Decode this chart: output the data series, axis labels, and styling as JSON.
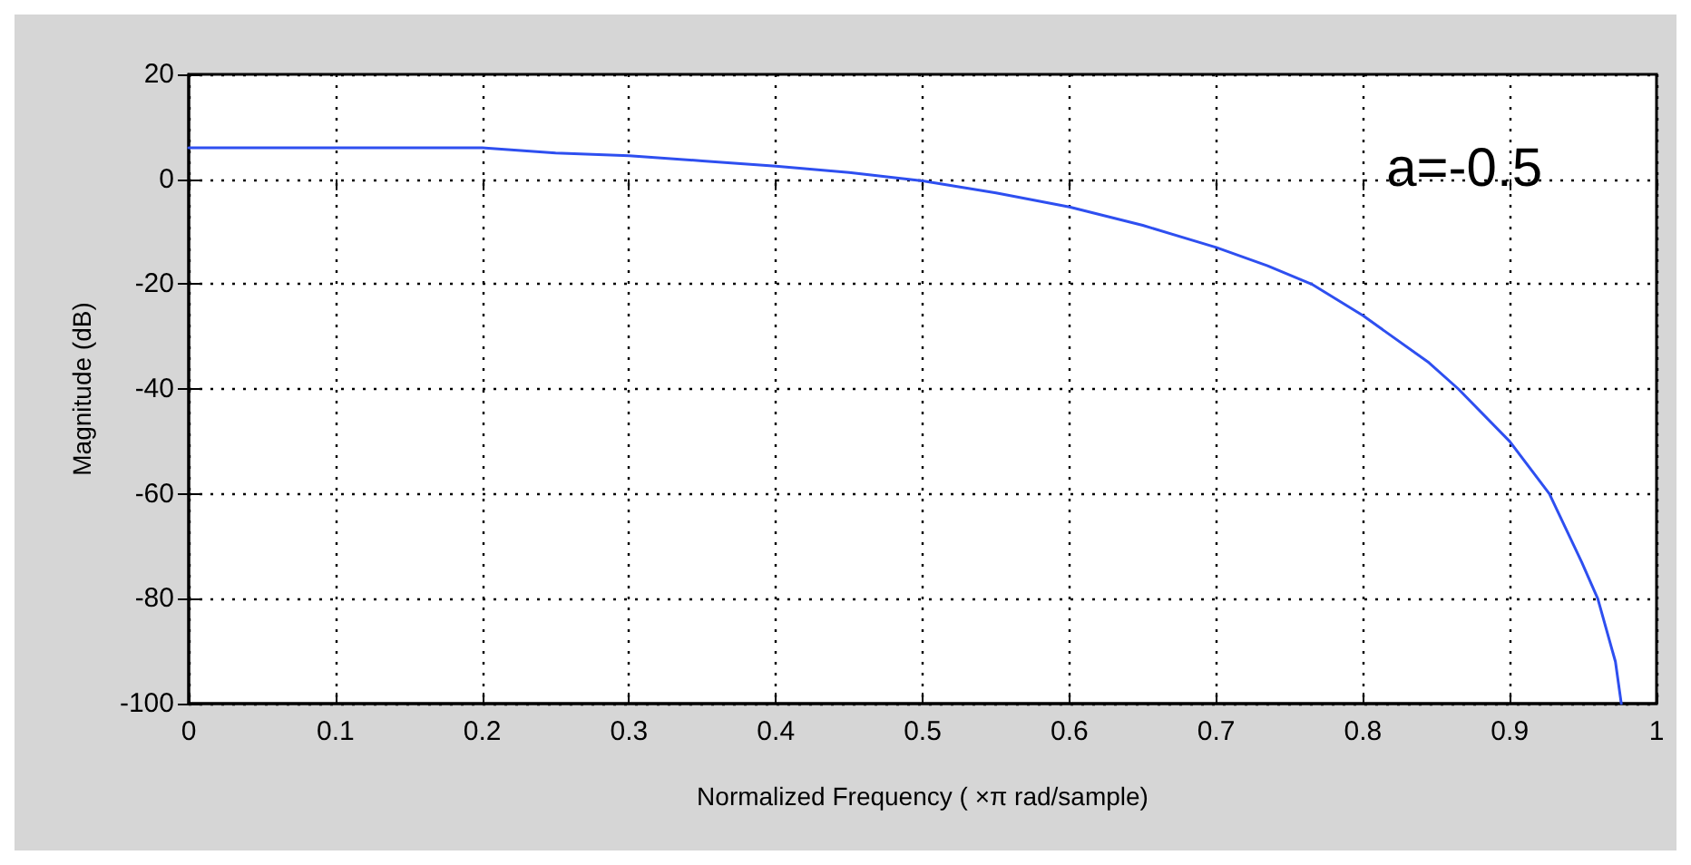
{
  "chart_data": {
    "type": "line",
    "xlabel": "Normalized Frequency ( ×π rad/sample)",
    "ylabel": "Magnitude (dB)",
    "annotations": [
      "a=-0.5"
    ],
    "xlim": [
      0,
      1
    ],
    "xticks": [
      0,
      0.1,
      0.2,
      0.3,
      0.4,
      0.5,
      0.6,
      0.7,
      0.8,
      0.9,
      1
    ],
    "ylim": [
      -100,
      20
    ],
    "yticks": [
      -100,
      -80,
      -60,
      -40,
      -20,
      0,
      20
    ],
    "grid": true,
    "line_style": "solid",
    "marker": "none",
    "series": [
      {
        "color": "#2e4ff0",
        "x": [
          0,
          0.1,
          0.2,
          0.25,
          0.3,
          0.35,
          0.4,
          0.45,
          0.5,
          0.55,
          0.6,
          0.65,
          0.7,
          0.735,
          0.765,
          0.8,
          0.845,
          0.865,
          0.9,
          0.927,
          0.949,
          0.96,
          0.972,
          0.976
        ],
        "values": [
          6,
          6,
          6,
          5,
          4.5,
          3.5,
          2.5,
          1.3,
          -0.3,
          -2.6,
          -5.3,
          -8.8,
          -13,
          -16.5,
          -20,
          -26,
          -35,
          -40,
          -50,
          -60,
          -73,
          -80,
          -92,
          -100
        ]
      }
    ]
  }
}
